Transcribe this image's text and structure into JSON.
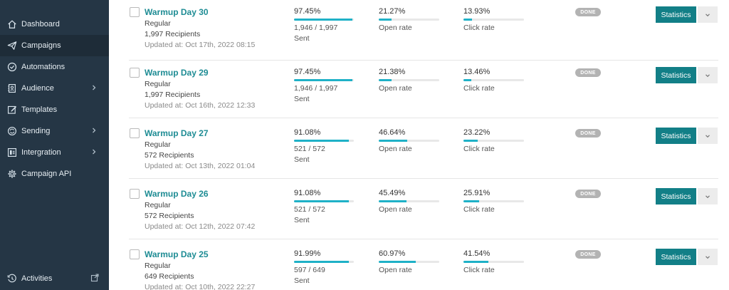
{
  "sidebar": {
    "items": [
      {
        "label": "Dashboard",
        "icon": "home-icon"
      },
      {
        "label": "Campaigns",
        "icon": "paper-plane-icon",
        "active": true
      },
      {
        "label": "Automations",
        "icon": "shield-check-icon"
      },
      {
        "label": "Audience",
        "icon": "address-book-icon",
        "has_children": true
      },
      {
        "label": "Templates",
        "icon": "edit-icon"
      },
      {
        "label": "Sending",
        "icon": "sync-icon",
        "has_children": true
      },
      {
        "label": "Intergration",
        "icon": "integration-icon",
        "has_children": true
      },
      {
        "label": "Campaign API",
        "icon": "cog-api-icon"
      }
    ],
    "footer": {
      "label": "Activities",
      "icon": "history-icon",
      "trailing_icon": "external-link-icon"
    }
  },
  "campaigns": [
    {
      "title": "Warmup Day 30",
      "type": "Regular",
      "recipients": "1,997 Recipients",
      "updated": "Updated at: Oct 17th, 2022 08:15",
      "sent_pct": "97.45%",
      "sent_frac": 0.9745,
      "sent_count": "1,946 / 1,997",
      "sent_label": "Sent",
      "open_pct": "21.27%",
      "open_frac": 0.2127,
      "open_label": "Open rate",
      "click_pct": "13.93%",
      "click_frac": 0.1393,
      "click_label": "Click rate",
      "status": "DONE",
      "button": "Statistics"
    },
    {
      "title": "Warmup Day 29",
      "type": "Regular",
      "recipients": "1,997 Recipients",
      "updated": "Updated at: Oct 16th, 2022 12:33",
      "sent_pct": "97.45%",
      "sent_frac": 0.9745,
      "sent_count": "1,946 / 1,997",
      "sent_label": "Sent",
      "open_pct": "21.38%",
      "open_frac": 0.2138,
      "open_label": "Open rate",
      "click_pct": "13.46%",
      "click_frac": 0.1346,
      "click_label": "Click rate",
      "status": "DONE",
      "button": "Statistics"
    },
    {
      "title": "Warmup Day 27",
      "type": "Regular",
      "recipients": "572 Recipients",
      "updated": "Updated at: Oct 13th, 2022 01:04",
      "sent_pct": "91.08%",
      "sent_frac": 0.9108,
      "sent_count": "521 / 572",
      "sent_label": "Sent",
      "open_pct": "46.64%",
      "open_frac": 0.4664,
      "open_label": "Open rate",
      "click_pct": "23.22%",
      "click_frac": 0.2322,
      "click_label": "Click rate",
      "status": "DONE",
      "button": "Statistics"
    },
    {
      "title": "Warmup Day 26",
      "type": "Regular",
      "recipients": "572 Recipients",
      "updated": "Updated at: Oct 12th, 2022 07:42",
      "sent_pct": "91.08%",
      "sent_frac": 0.9108,
      "sent_count": "521 / 572",
      "sent_label": "Sent",
      "open_pct": "45.49%",
      "open_frac": 0.4549,
      "open_label": "Open rate",
      "click_pct": "25.91%",
      "click_frac": 0.2591,
      "click_label": "Click rate",
      "status": "DONE",
      "button": "Statistics"
    },
    {
      "title": "Warmup Day 25",
      "type": "Regular",
      "recipients": "649 Recipients",
      "updated": "Updated at: Oct 10th, 2022 22:27",
      "sent_pct": "91.99%",
      "sent_frac": 0.9199,
      "sent_count": "597 / 649",
      "sent_label": "Sent",
      "open_pct": "60.97%",
      "open_frac": 0.6097,
      "open_label": "Open rate",
      "click_pct": "41.54%",
      "click_frac": 0.4154,
      "click_label": "Click rate",
      "status": "DONE",
      "button": "Statistics"
    }
  ],
  "colors": {
    "sidebar": "#253645",
    "accent": "#127f87",
    "link": "#1e8c94",
    "bar": "#1fb1c7",
    "badge": "#b3b3b3"
  }
}
